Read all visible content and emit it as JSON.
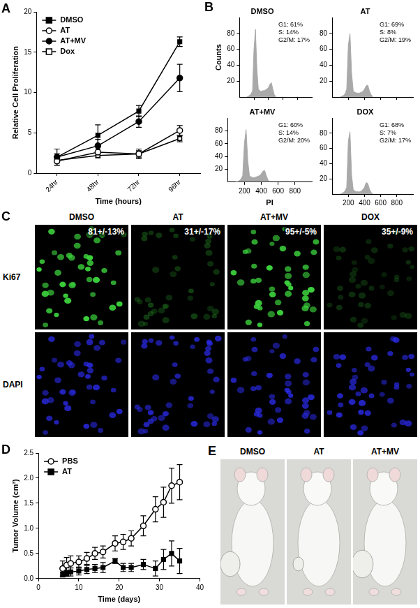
{
  "chart_data": [
    {
      "panel": "A",
      "type": "line",
      "xlabel": "Time (hours)",
      "ylabel": "Relative Cell Proliferation",
      "categories": [
        "24hr",
        "48hr",
        "72hr",
        "96hr"
      ],
      "ylim": [
        0,
        20
      ],
      "yticks": [
        0,
        5,
        10,
        15,
        20
      ],
      "grid": false,
      "legend": "top-left",
      "series": [
        {
          "name": "DMSO",
          "color": "#000000",
          "marker": "filled_square",
          "values": [
            2.0,
            4.7,
            7.7,
            16.3
          ],
          "errors": [
            0.4,
            1.3,
            0.7,
            0.6
          ]
        },
        {
          "name": "AT",
          "color": "#000000",
          "marker": "open_circle",
          "values": [
            1.5,
            2.6,
            2.4,
            5.3
          ],
          "errors": [
            0.5,
            0.4,
            0.6,
            0.6
          ]
        },
        {
          "name": "AT+MV",
          "color": "#000000",
          "marker": "filled_circle",
          "values": [
            2.0,
            3.4,
            6.4,
            11.8
          ],
          "errors": [
            1.0,
            0.8,
            0.7,
            1.7
          ]
        },
        {
          "name": "Dox",
          "color": "#000000",
          "marker": "open_square",
          "values": [
            1.6,
            2.2,
            2.4,
            4.3
          ],
          "errors": [
            0.3,
            0.3,
            0.4,
            0.4
          ]
        }
      ]
    },
    {
      "panel": "B",
      "type": "area",
      "title": "DMSO",
      "ylabel": "Counts",
      "annotations": [
        "G1: 61%",
        "S: 14%",
        "G2/M: 17%"
      ],
      "x": [
        100,
        120,
        140,
        160,
        180,
        200,
        220,
        240,
        260,
        280,
        300,
        320,
        340,
        360,
        380,
        400,
        420,
        440,
        460,
        480,
        500
      ],
      "values": [
        0,
        1,
        2,
        4,
        8,
        60,
        85,
        35,
        10,
        8,
        7,
        8,
        8,
        9,
        10,
        12,
        16,
        18,
        10,
        3,
        1
      ],
      "color": "#a9a9a9",
      "xlim": [
        0,
        1000
      ],
      "xticks": [
        200,
        400,
        600,
        800
      ],
      "ylim": [
        0,
        100
      ],
      "yticks": [
        20,
        40,
        60,
        80
      ],
      "grid": false,
      "tick_labels": "y"
    },
    {
      "type": "area",
      "title": "AT",
      "annotations": [
        "G1: 69%",
        "S: 8%",
        "G2/M: 19%"
      ],
      "x": [
        100,
        120,
        140,
        160,
        180,
        200,
        220,
        240,
        260,
        280,
        300,
        320,
        340,
        360,
        380,
        400,
        420,
        440,
        460,
        480,
        500
      ],
      "values": [
        0,
        1,
        2,
        4,
        10,
        65,
        80,
        30,
        8,
        6,
        5,
        5,
        5,
        6,
        7,
        10,
        14,
        15,
        8,
        3,
        1
      ],
      "color": "#a9a9a9",
      "xlim": [
        0,
        1000
      ],
      "xticks": [
        200,
        400,
        600,
        800
      ],
      "ylim": [
        0,
        100
      ],
      "yticks": [
        20,
        40,
        60,
        80
      ],
      "grid": false,
      "tick_labels": "y"
    },
    {
      "type": "area",
      "title": "AT+MV",
      "xlabel": "PI",
      "annotations": [
        "G1: 60%",
        "S: 14%",
        "G2/M: 20%"
      ],
      "x": [
        100,
        120,
        140,
        160,
        180,
        200,
        220,
        240,
        260,
        280,
        300,
        320,
        340,
        360,
        380,
        400,
        420,
        440,
        460,
        480,
        500
      ],
      "values": [
        0,
        1,
        2,
        5,
        10,
        60,
        82,
        33,
        10,
        8,
        7,
        7,
        8,
        9,
        10,
        13,
        17,
        18,
        10,
        3,
        1
      ],
      "color": "#a9a9a9",
      "xlim": [
        0,
        1000
      ],
      "xticks": [
        200,
        400,
        600,
        800
      ],
      "ylim": [
        0,
        100
      ],
      "yticks": [
        20,
        40,
        60,
        80
      ],
      "grid": false
    },
    {
      "type": "area",
      "title": "DOX",
      "annotations": [
        "G1: 68%",
        "S: 7%",
        "G2/M: 17%"
      ],
      "x": [
        100,
        120,
        140,
        160,
        180,
        200,
        220,
        240,
        260,
        280,
        300,
        320,
        340,
        360,
        380,
        400,
        420,
        440,
        460,
        480,
        500
      ],
      "values": [
        0,
        1,
        2,
        4,
        9,
        70,
        82,
        25,
        6,
        4,
        3,
        3,
        3,
        4,
        6,
        9,
        15,
        14,
        7,
        2,
        1
      ],
      "color": "#a9a9a9",
      "xlim": [
        0,
        1000
      ],
      "xticks": [
        200,
        400,
        600,
        800
      ],
      "ylim": [
        0,
        100
      ],
      "yticks": [
        20,
        40,
        60,
        80
      ],
      "grid": false
    },
    {
      "panel": "D",
      "type": "line",
      "xlabel": "Time (days)",
      "ylabel": "Tumor Volume (cm³)",
      "x": [
        6,
        7,
        8,
        10,
        12,
        14,
        16,
        19,
        21,
        23,
        26,
        29,
        31,
        33,
        35
      ],
      "xlim": [
        0,
        40
      ],
      "xticks": [
        0,
        10,
        20,
        30,
        40
      ],
      "ylim": [
        0,
        2.5
      ],
      "yticks": [
        {
          "value": 0,
          "label": "0.0"
        },
        0.5,
        {
          "value": 1,
          "label": "1.0"
        },
        1.5,
        {
          "value": 2,
          "label": "2.0"
        },
        2.5
      ],
      "grid": false,
      "legend": "top-left",
      "series": [
        {
          "name": "PBS",
          "color": "#000000",
          "marker": "open_circle",
          "values": [
            0.2,
            0.27,
            0.3,
            0.33,
            0.4,
            0.5,
            0.53,
            0.7,
            0.73,
            0.8,
            1.05,
            1.38,
            1.52,
            1.85,
            1.92
          ],
          "errors": [
            0.15,
            0.15,
            0.15,
            0.12,
            0.12,
            0.12,
            0.12,
            0.15,
            0.15,
            0.15,
            0.2,
            0.25,
            0.3,
            0.35,
            0.35
          ]
        },
        {
          "name": "AT",
          "color": "#000000",
          "marker": "filled_square",
          "values": [
            0.08,
            0.1,
            0.13,
            0.15,
            0.18,
            0.2,
            0.22,
            0.35,
            0.22,
            0.22,
            0.28,
            0.2,
            0.38,
            0.5,
            0.35
          ],
          "errors": [
            0.05,
            0.06,
            0.08,
            0.08,
            0.08,
            0.08,
            0.1,
            0.05,
            0.08,
            0.08,
            0.1,
            0.15,
            0.2,
            0.25,
            0.25
          ]
        }
      ]
    }
  ],
  "panel_c": {
    "panel": "C",
    "columns": [
      "DMSO",
      "AT",
      "AT+MV",
      "DOX"
    ],
    "rows": [
      "Ki67",
      "DAPI"
    ],
    "ki67_percent": [
      "81+/-13%",
      "31+/-17%",
      "95+/-5%",
      "35+/-9%"
    ],
    "colors": [
      "#3cd23c",
      "#2a2ae6"
    ]
  },
  "panel_e": {
    "panel": "E",
    "labels": [
      "DMSO",
      "AT",
      "AT+MV"
    ]
  }
}
